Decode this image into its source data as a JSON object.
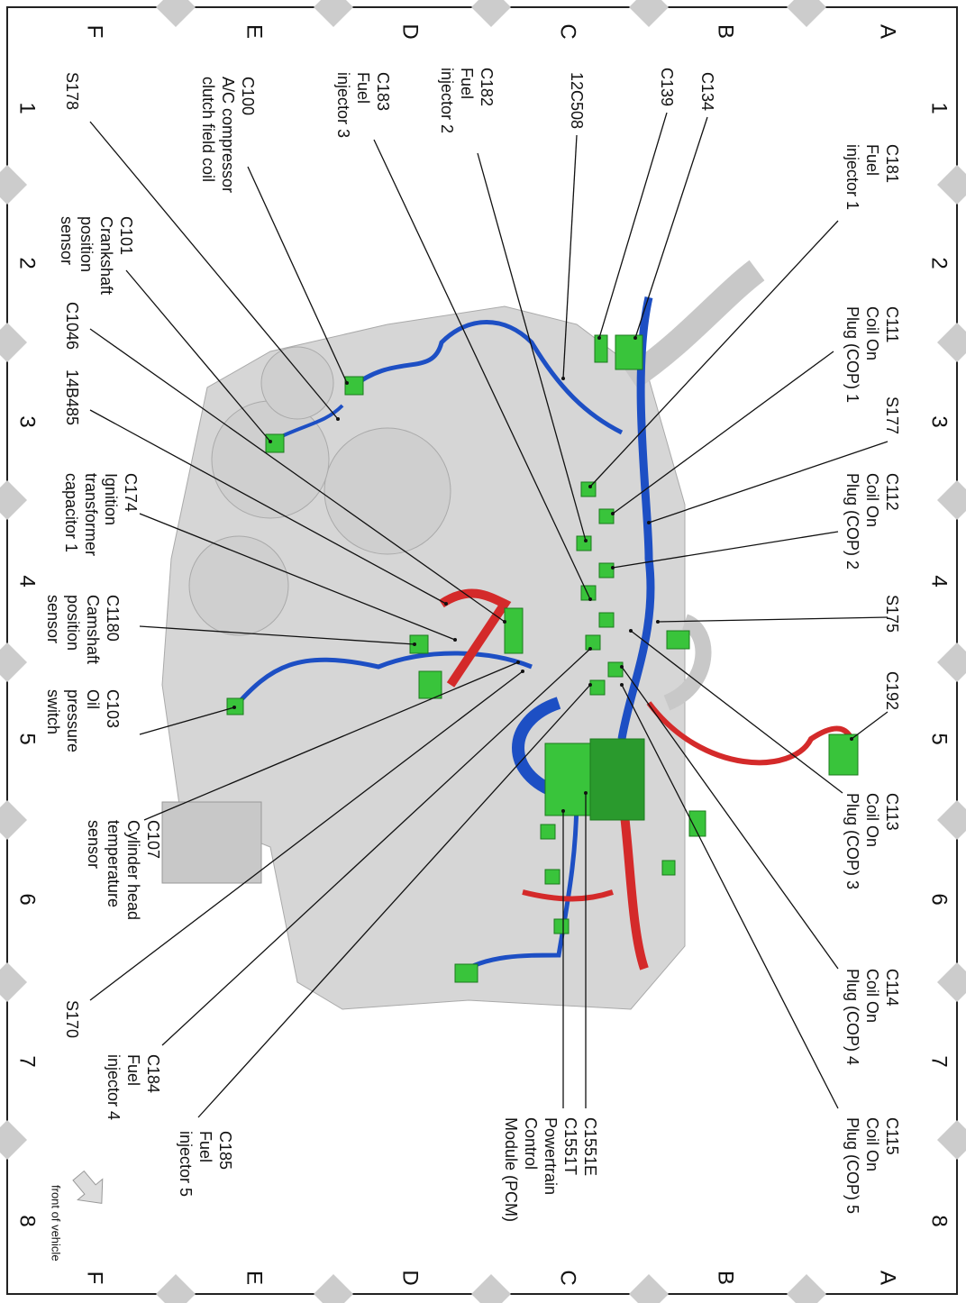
{
  "grid": {
    "rows": [
      "A",
      "B",
      "C",
      "D",
      "E",
      "F"
    ],
    "columns": [
      1,
      2,
      3,
      4,
      5,
      6,
      7,
      8
    ]
  },
  "labels": [
    {
      "lines": [
        "C181",
        "Fuel",
        "injector 1"
      ]
    },
    {
      "lines": [
        "C111",
        "Coil On",
        "Plug (COP) 1"
      ]
    },
    {
      "lines": [
        "S177"
      ]
    },
    {
      "lines": [
        "C112",
        "Coil On",
        "Plug (COP) 2"
      ]
    },
    {
      "lines": [
        "S175"
      ]
    },
    {
      "lines": [
        "C192"
      ]
    },
    {
      "lines": [
        "C113",
        "Coil On",
        "Plug (COP) 3"
      ]
    },
    {
      "lines": [
        "C114",
        "Coil On",
        "Plug (COP) 4"
      ]
    },
    {
      "lines": [
        "C115",
        "Coil On",
        "Plug (COP) 5"
      ]
    },
    {
      "lines": [
        "C1551E",
        "C1551T",
        "Powertrain",
        "Control",
        "Module (PCM)"
      ]
    },
    {
      "lines": [
        "C185",
        "Fuel",
        "injector 5"
      ]
    },
    {
      "lines": [
        "C184",
        "Fuel",
        "injector 4"
      ]
    },
    {
      "lines": [
        "S170"
      ]
    },
    {
      "lines": [
        "C107",
        "Cylinder head",
        "temperature",
        "sensor"
      ]
    },
    {
      "lines": [
        "C103",
        "Oil",
        "pressure",
        "switch"
      ]
    },
    {
      "lines": [
        "C1180",
        "Camshaft",
        "position",
        "sensor"
      ]
    },
    {
      "lines": [
        "C174",
        "Ignition",
        "transformer",
        "capacitor 1"
      ]
    },
    {
      "lines": [
        "14B485"
      ]
    },
    {
      "lines": [
        "C1046"
      ]
    },
    {
      "lines": [
        "C101",
        "Crankshaft",
        "position",
        "sensor"
      ]
    },
    {
      "lines": [
        "S178"
      ]
    },
    {
      "lines": [
        "C100",
        "A/C compressor",
        "clutch field coil"
      ]
    },
    {
      "lines": [
        "C183",
        "Fuel",
        "injector 3"
      ]
    },
    {
      "lines": [
        "C182",
        "Fuel",
        "injector 2"
      ]
    },
    {
      "lines": [
        "12C508"
      ]
    },
    {
      "lines": [
        "C139"
      ]
    },
    {
      "lines": [
        "C134"
      ]
    }
  ],
  "note": "front of vehicle"
}
